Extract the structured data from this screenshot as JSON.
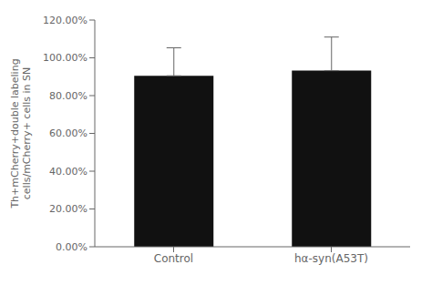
{
  "chart_data": {
    "type": "bar",
    "categories": [
      "Control",
      "hα-syn(A53T)"
    ],
    "values": [
      0.905,
      0.932
    ],
    "errors_upper": [
      0.148,
      0.178
    ],
    "color": "#111111",
    "y_label": "Th+mCherry+double labeling\ncells/mCherry+ cells in SN",
    "ylim": [
      0.0,
      1.2
    ],
    "yticks": [
      {
        "value": 0.0,
        "label": "0.00%"
      },
      {
        "value": 0.2,
        "label": "20.00%"
      },
      {
        "value": 0.4,
        "label": "40.00%"
      },
      {
        "value": 0.6,
        "label": "60.00%"
      },
      {
        "value": 0.8,
        "label": "80.00%"
      },
      {
        "value": 1.0,
        "label": "100.00%"
      },
      {
        "value": 1.2,
        "label": "120.00%"
      }
    ],
    "grid": false
  }
}
